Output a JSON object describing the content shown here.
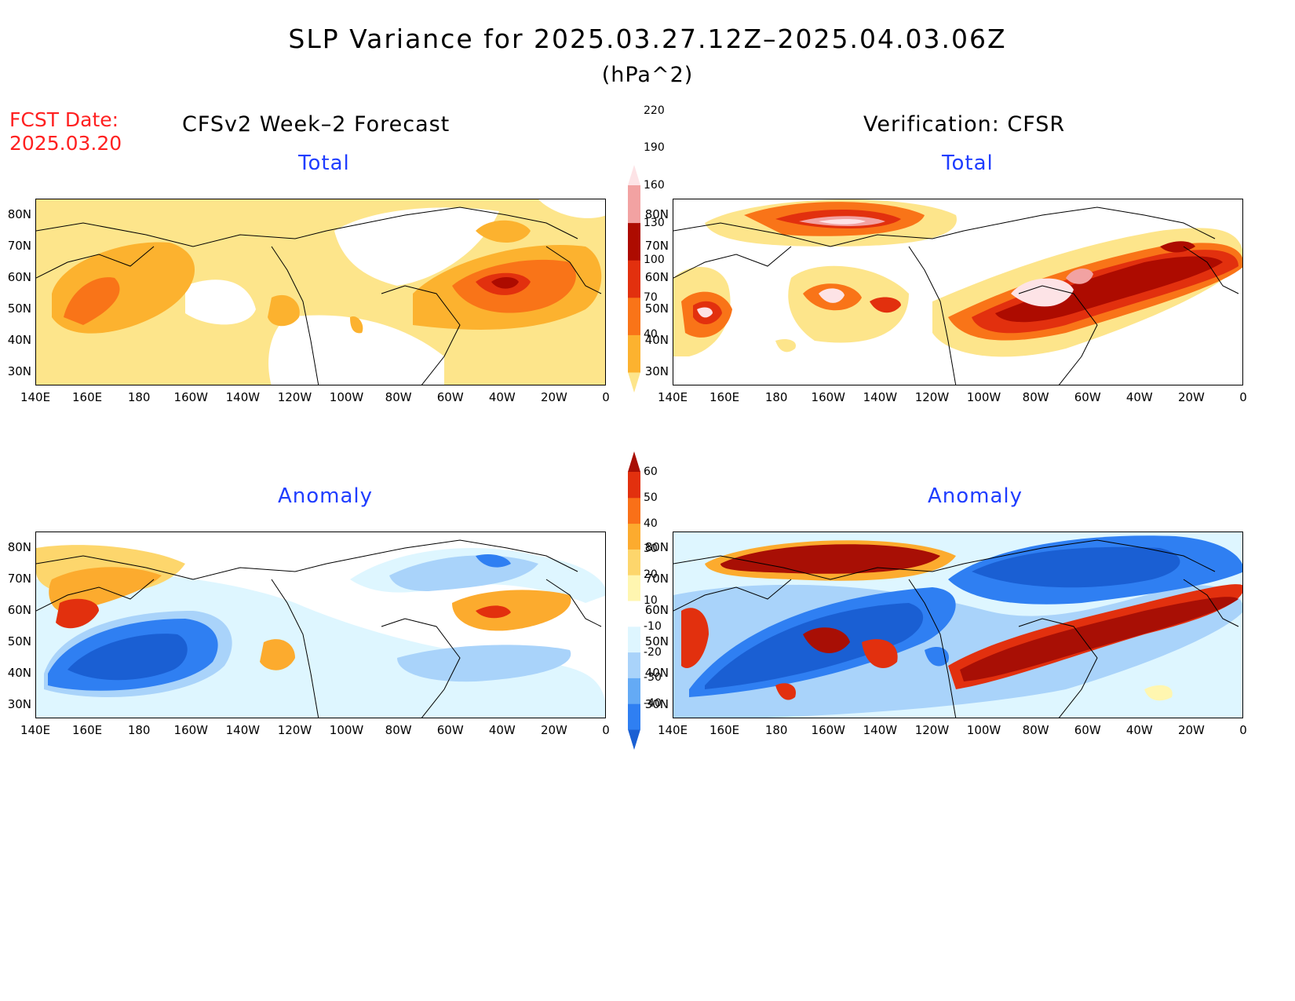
{
  "title": "SLP Variance for 2025.03.27.12Z–2025.04.03.06Z",
  "units": "(hPa^2)",
  "fcst_date_label": "FCST Date:",
  "fcst_date_value": "2025.03.20",
  "columns": {
    "forecast": "CFSv2 Week–2 Forecast",
    "verification": "Verification: CFSR"
  },
  "panels": {
    "forecast_total": {
      "title": "Total"
    },
    "verification_total": {
      "title": "Total"
    },
    "forecast_anomaly": {
      "title": "Anomaly"
    },
    "verification_anomaly": {
      "title": "Anomaly"
    }
  },
  "lat_labels": [
    "80N",
    "70N",
    "60N",
    "50N",
    "40N",
    "30N"
  ],
  "lon_labels": [
    "140E",
    "160E",
    "180",
    "160W",
    "140W",
    "120W",
    "100W",
    "80W",
    "60W",
    "40W",
    "20W",
    "0"
  ],
  "colorbar_total": {
    "levels": [
      "40",
      "70",
      "100",
      "130",
      "160",
      "190",
      "220"
    ],
    "colors": [
      "#fde58b",
      "#fcb22f",
      "#f97418",
      "#e2300e",
      "#ad0b00",
      "#f2a2a2",
      "#fde3e6"
    ]
  },
  "colorbar_anomaly": {
    "levels": [
      "-40",
      "-30",
      "-20",
      "-10",
      "10",
      "20",
      "30",
      "40",
      "50",
      "60"
    ],
    "colors": [
      "#1a5fd3",
      "#2f7ff2",
      "#64aaf5",
      "#a9d3fa",
      "#def6ff",
      "#ffffff",
      "#fff6b0",
      "#fdd66c",
      "#fcab2e",
      "#f97018",
      "#e2300e",
      "#a80f05"
    ]
  },
  "colors": {
    "panel_title": "#1f3dff",
    "fcst_date": "#ff2020"
  }
}
